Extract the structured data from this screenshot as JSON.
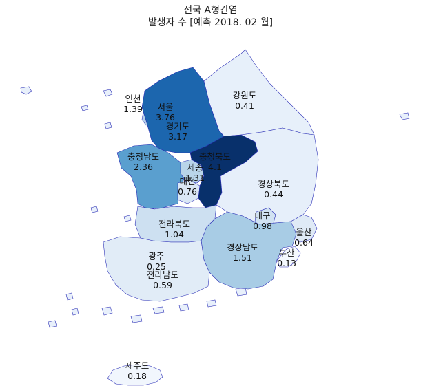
{
  "title": {
    "line1": "전국 A형간염",
    "line2": "발생자 수 [예측 2018. 02 월]"
  },
  "colorscale": [
    "#e9f1fb",
    "#c9dcef",
    "#a3c8e4",
    "#5ca1cf",
    "#2a78ba",
    "#0f56a1",
    "#08306b"
  ],
  "regions": [
    {
      "id": "seoul",
      "name": "서울",
      "value": "3.76",
      "color": "#0f56a1"
    },
    {
      "id": "incheon",
      "name": "인천",
      "value": "1.39",
      "color": "#b6d2e9"
    },
    {
      "id": "gyeonggi",
      "name": "경기도",
      "value": "3.17",
      "color": "#1c66ae"
    },
    {
      "id": "gangwon",
      "name": "강원도",
      "value": "0.41",
      "color": "#e7f0fa"
    },
    {
      "id": "chungnam",
      "name": "충청남도",
      "value": "2.36",
      "color": "#5a9fcf"
    },
    {
      "id": "sejong",
      "name": "세종",
      "value": "1.31",
      "color": "#b9d5ea"
    },
    {
      "id": "daejeon",
      "name": "대전",
      "value": "0.76",
      "color": "#dae7f5"
    },
    {
      "id": "chungbuk",
      "name": "충청북도",
      "value": "4.1",
      "color": "#08306b"
    },
    {
      "id": "gyeongbuk",
      "name": "경상북도",
      "value": "0.44",
      "color": "#e6effa"
    },
    {
      "id": "daegu",
      "name": "대구",
      "value": "0.98",
      "color": "#d1e2f2"
    },
    {
      "id": "jeonbuk",
      "name": "전라북도",
      "value": "1.04",
      "color": "#cde0f1"
    },
    {
      "id": "ulsan",
      "name": "울산",
      "value": "0.64",
      "color": "#dfeaf6"
    },
    {
      "id": "gyeongnam",
      "name": "경상남도",
      "value": "1.51",
      "color": "#a8cce5"
    },
    {
      "id": "busan",
      "name": "부산",
      "value": "0.13",
      "color": "#f5f9fe"
    },
    {
      "id": "gwangju",
      "name": "광주",
      "value": "0.25",
      "color": "#edf4fc"
    },
    {
      "id": "jeonnam",
      "name": "전라남도",
      "value": "0.59",
      "color": "#e1ecf7"
    },
    {
      "id": "jeju",
      "name": "제주도",
      "value": "0.18",
      "color": "#f1f6fd"
    }
  ]
}
